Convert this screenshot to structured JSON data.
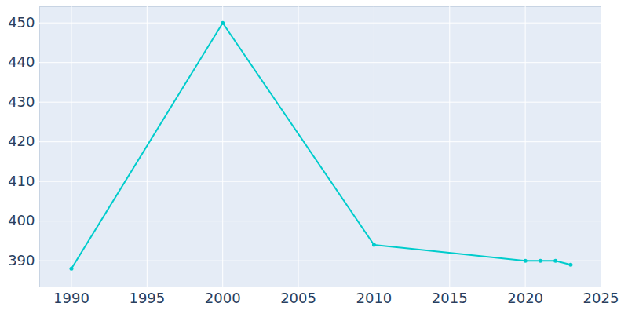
{
  "chart_data": {
    "type": "line",
    "x": [
      1990,
      2000,
      2010,
      2020,
      2021,
      2022,
      2023
    ],
    "values": [
      388,
      450,
      394,
      390,
      390,
      390,
      389
    ],
    "color": "#00cccc",
    "marker": "circle",
    "line_style": "solid",
    "xlim": [
      1987.9,
      2025
    ],
    "xticks": [
      1990,
      1995,
      2000,
      2005,
      2010,
      2015,
      2020,
      2025
    ],
    "ylim": [
      383.4,
      454.1
    ],
    "yticks": [
      390,
      400,
      410,
      420,
      430,
      440,
      450
    ],
    "grid": true
  }
}
